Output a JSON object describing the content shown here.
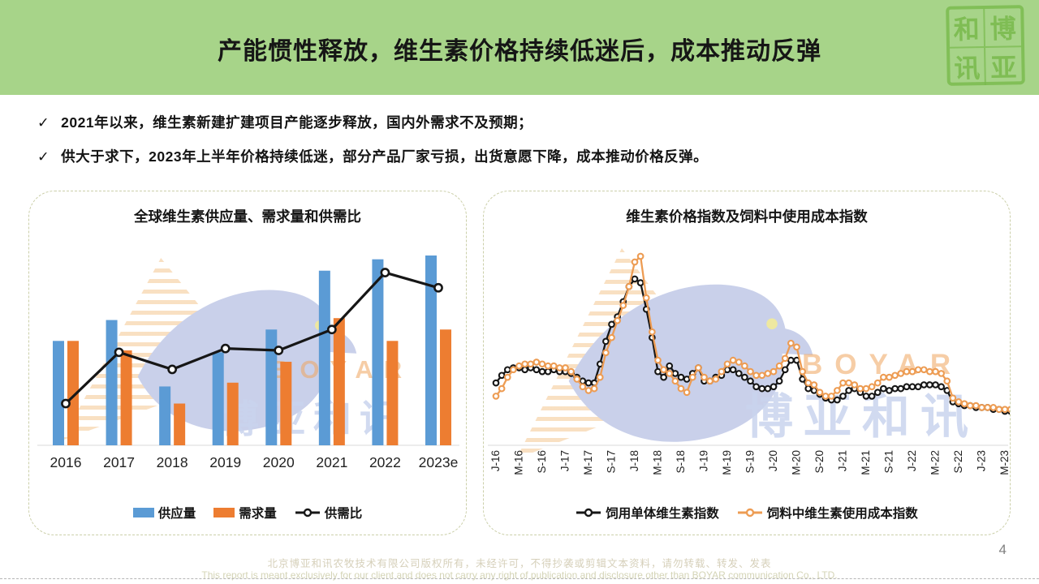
{
  "header": {
    "title": "产能惯性释放，维生素价格持续低迷后，成本推动反弹",
    "logo": {
      "chars": [
        "和",
        "博",
        "讯",
        "亚"
      ]
    }
  },
  "bullets": {
    "check_glyph": "✓",
    "items": [
      "2021年以来，维生素新建扩建项目产能逐步释放，国内外需求不及预期；",
      "供大于求下，2023年上半年价格持续低迷，部分产品厂家亏损，出货意愿下降，成本推动价格反弹。"
    ]
  },
  "watermark": {
    "en": "BOYAR",
    "cn": "博亚和讯"
  },
  "footer": {
    "line_cn": "北京博亚和讯农牧技术有限公司版权所有，未经许可，不得抄袭或剪辑文本资料，请勿转载、转发、发表",
    "line_en": "This report is meant exclusively for our client and does not carry any right of publication and disclosure other than BOYAR communication Co., LTD.",
    "page_number": "4"
  },
  "colors": {
    "header_green": "#A7D489",
    "bar_blue": "#5B9BD5",
    "bar_orange": "#ED7D31",
    "line_black": "#161616",
    "line_orange": "#ED9C53",
    "axis_gray": "#D9D9D9",
    "tick_text": "#222222"
  },
  "chart_data": [
    {
      "type": "bar",
      "title": "全球维生素供应量、需求量和供需比",
      "note": "no numeric axis shown; values are relative index 0-100 read from bar/line heights",
      "categories": [
        "2016",
        "2017",
        "2018",
        "2019",
        "2020",
        "2021",
        "2022",
        "2023e"
      ],
      "ylim": [
        0,
        100
      ],
      "grid": false,
      "legend_position": "bottom",
      "series": [
        {
          "key": "supply",
          "name": "供应量",
          "type": "bar",
          "color": "#5B9BD5",
          "values": [
            55,
            66,
            31,
            49,
            61,
            92,
            98,
            100
          ]
        },
        {
          "key": "demand",
          "name": "需求量",
          "type": "bar",
          "color": "#ED7D31",
          "values": [
            55,
            50,
            22,
            33,
            44,
            67,
            55,
            61
          ]
        },
        {
          "key": "ratio",
          "name": "供需比",
          "type": "line",
          "color": "#161616",
          "values": [
            22,
            49,
            40,
            51,
            50,
            61,
            91,
            83
          ]
        }
      ]
    },
    {
      "type": "line",
      "title": "维生素价格指数及饲料中使用成本指数",
      "note": "monthly points Jan-2016..Jun-2023; no numeric axis shown; values are relative index 0-100",
      "x_tick_labels": [
        "J-16",
        "M-16",
        "S-16",
        "J-17",
        "M-17",
        "S-17",
        "J-18",
        "M-18",
        "S-18",
        "J-19",
        "M-19",
        "S-19",
        "J-20",
        "M-20",
        "S-20",
        "J-21",
        "M-21",
        "S-21",
        "J-22",
        "M-22",
        "S-22",
        "J-23",
        "M-23"
      ],
      "x_tick_every_n_months": 4,
      "ylim": [
        0,
        105
      ],
      "grid": false,
      "legend_position": "bottom",
      "series": [
        {
          "key": "vitamin-price-index",
          "name": "饲用单体维生素指数",
          "type": "line",
          "color": "#161616",
          "values": [
            33,
            37,
            40,
            41,
            41,
            40,
            41,
            40,
            39,
            39,
            40,
            39,
            39,
            38,
            36,
            34,
            33,
            33,
            43,
            55,
            64,
            68,
            76,
            84,
            88,
            86,
            72,
            57,
            39,
            36,
            42,
            38,
            36,
            35,
            38,
            41,
            34,
            34,
            36,
            37,
            40,
            40,
            38,
            36,
            34,
            31,
            30,
            30,
            31,
            34,
            40,
            45,
            45,
            35,
            30,
            29,
            27,
            25,
            24,
            24,
            26,
            29,
            30,
            28,
            26,
            26,
            28,
            30,
            29,
            30,
            30,
            31,
            31,
            31,
            32,
            32,
            32,
            31,
            29,
            23,
            22,
            21,
            21,
            20,
            20,
            20,
            19,
            19,
            18,
            18
          ]
        },
        {
          "key": "vitamin-cost-index",
          "name": "饲料中维生素使用成本指数",
          "type": "line",
          "color": "#ED9C53",
          "values": [
            26,
            30,
            36,
            40,
            42,
            43,
            43,
            44,
            43,
            42,
            42,
            41,
            41,
            39,
            35,
            31,
            29,
            30,
            36,
            49,
            57,
            66,
            74,
            84,
            97,
            100,
            78,
            60,
            45,
            40,
            38,
            34,
            30,
            28,
            36,
            41,
            36,
            34,
            35,
            39,
            43,
            45,
            44,
            42,
            39,
            37,
            37,
            38,
            39,
            42,
            46,
            54,
            52,
            39,
            33,
            32,
            28,
            26,
            26,
            29,
            33,
            33,
            32,
            30,
            30,
            31,
            33,
            36,
            36,
            37,
            38,
            39,
            39,
            40,
            40,
            39,
            39,
            38,
            34,
            25,
            23,
            22,
            21,
            21,
            20,
            20,
            20,
            19,
            19,
            19
          ]
        }
      ]
    }
  ]
}
